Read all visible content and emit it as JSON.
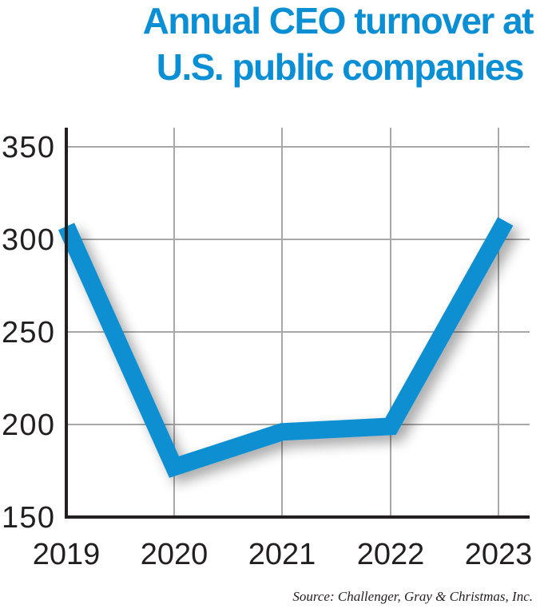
{
  "title_lines": [
    "Annual CEO turnover at",
    "U.S. public companies"
  ],
  "source": "Source: Challenger, Gray & Christmas, Inc.",
  "colors": {
    "title": "#0b8fd4",
    "line": "#0a8fd2",
    "grid": "#a8a8a8",
    "axis": "#231f20"
  },
  "chart_data": {
    "type": "line",
    "title": "Annual CEO turnover at U.S. public companies",
    "xlabel": "",
    "ylabel": "",
    "categories": [
      "2019",
      "2020",
      "2021",
      "2022",
      "2023"
    ],
    "series": [
      {
        "name": "CEO turnover",
        "values": [
          307,
          177,
          196,
          199,
          303
        ]
      }
    ],
    "yticks": [
      "350",
      "300",
      "250",
      "200",
      "150"
    ],
    "ylim": [
      150,
      350
    ],
    "grid": true,
    "legend": "none",
    "source": "Source: Challenger, Gray & Christmas, Inc."
  }
}
